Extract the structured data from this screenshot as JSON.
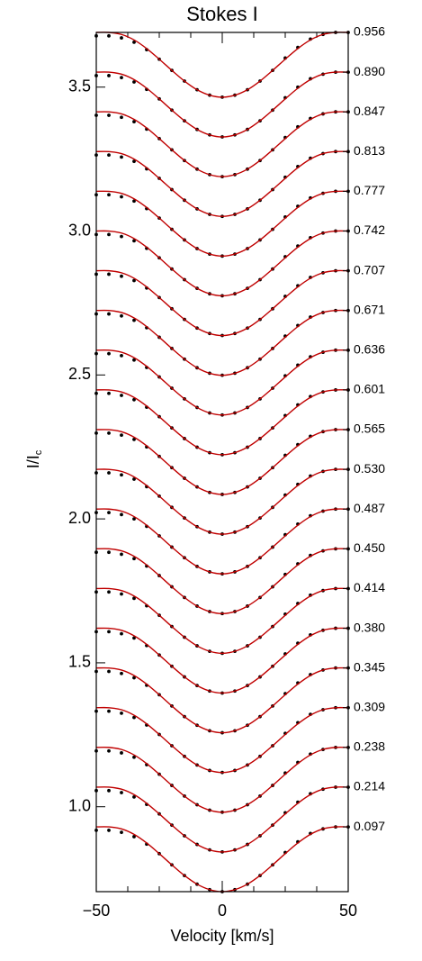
{
  "chart_data": {
    "type": "stacked-profiles",
    "title": "Stokes I",
    "xlabel": "Velocity [km/s]",
    "ylabel": "I/I",
    "ylabel_sub": "c",
    "xlim": [
      -50,
      50
    ],
    "ylim": [
      0.705,
      3.69
    ],
    "xticks": [
      {
        "value": -50,
        "label": "−50"
      },
      0,
      50
    ],
    "xminorticks": [
      -37.5,
      -25,
      -12.5,
      12.5,
      25,
      37.5
    ],
    "yticks": [
      {
        "value": 1.0,
        "label": "1.0"
      },
      1.5,
      {
        "value": 2.0,
        "label": "2.0"
      },
      2.5,
      {
        "value": 3.0,
        "label": "3.0"
      },
      3.5
    ],
    "model_color": "#c00000",
    "observed_color": "#000000",
    "x": [
      -50,
      -45,
      -40,
      -35,
      -30,
      -25,
      -20,
      -15,
      -10,
      -5,
      0,
      5,
      10,
      15,
      20,
      25,
      30,
      35,
      40,
      45,
      50
    ],
    "profiles": [
      {
        "label": "0.956",
        "model": [
          3.69,
          3.69,
          3.683,
          3.664,
          3.634,
          3.597,
          3.558,
          3.521,
          3.491,
          3.472,
          3.465,
          3.472,
          3.491,
          3.521,
          3.558,
          3.597,
          3.634,
          3.664,
          3.683,
          3.69,
          3.69
        ],
        "observed": [
          3.678,
          3.678,
          3.671,
          3.656,
          3.63,
          3.597,
          3.558,
          3.521,
          3.491,
          3.472,
          3.465,
          3.472,
          3.491,
          3.521,
          3.558,
          3.601,
          3.638,
          3.667,
          3.683,
          3.69,
          3.69
        ]
      },
      {
        "label": "0.890",
        "model": [
          3.552,
          3.552,
          3.545,
          3.526,
          3.496,
          3.459,
          3.42,
          3.383,
          3.353,
          3.334,
          3.327,
          3.334,
          3.353,
          3.383,
          3.42,
          3.459,
          3.496,
          3.526,
          3.545,
          3.552,
          3.552
        ],
        "observed": [
          3.54,
          3.54,
          3.533,
          3.518,
          3.492,
          3.459,
          3.42,
          3.383,
          3.353,
          3.334,
          3.327,
          3.334,
          3.353,
          3.383,
          3.42,
          3.463,
          3.5,
          3.529,
          3.545,
          3.552,
          3.552
        ]
      },
      {
        "label": "0.847",
        "model": [
          3.414,
          3.414,
          3.407,
          3.388,
          3.358,
          3.321,
          3.282,
          3.245,
          3.215,
          3.196,
          3.189,
          3.196,
          3.215,
          3.245,
          3.282,
          3.321,
          3.358,
          3.388,
          3.407,
          3.414,
          3.414
        ],
        "observed": [
          3.402,
          3.402,
          3.395,
          3.38,
          3.354,
          3.321,
          3.282,
          3.245,
          3.215,
          3.196,
          3.189,
          3.196,
          3.215,
          3.245,
          3.282,
          3.325,
          3.362,
          3.391,
          3.407,
          3.414,
          3.414
        ]
      },
      {
        "label": "0.813",
        "model": [
          3.276,
          3.276,
          3.269,
          3.25,
          3.22,
          3.183,
          3.144,
          3.107,
          3.077,
          3.058,
          3.051,
          3.058,
          3.077,
          3.107,
          3.144,
          3.183,
          3.22,
          3.25,
          3.269,
          3.276,
          3.276
        ],
        "observed": [
          3.264,
          3.264,
          3.257,
          3.242,
          3.216,
          3.183,
          3.144,
          3.107,
          3.077,
          3.058,
          3.051,
          3.058,
          3.077,
          3.107,
          3.144,
          3.187,
          3.224,
          3.253,
          3.269,
          3.276,
          3.276
        ]
      },
      {
        "label": "0.777",
        "model": [
          3.138,
          3.138,
          3.131,
          3.112,
          3.082,
          3.045,
          3.006,
          2.969,
          2.939,
          2.92,
          2.913,
          2.92,
          2.939,
          2.969,
          3.006,
          3.045,
          3.082,
          3.112,
          3.131,
          3.138,
          3.138
        ],
        "observed": [
          3.126,
          3.126,
          3.119,
          3.104,
          3.078,
          3.045,
          3.006,
          2.969,
          2.939,
          2.92,
          2.913,
          2.92,
          2.939,
          2.969,
          3.006,
          3.049,
          3.086,
          3.115,
          3.131,
          3.138,
          3.138
        ]
      },
      {
        "label": "0.742",
        "model": [
          3,
          3,
          2.993,
          2.974,
          2.944,
          2.907,
          2.868,
          2.831,
          2.801,
          2.782,
          2.775,
          2.782,
          2.801,
          2.831,
          2.868,
          2.907,
          2.944,
          2.974,
          2.993,
          3,
          3
        ],
        "observed": [
          2.988,
          2.988,
          2.981,
          2.966,
          2.94,
          2.907,
          2.868,
          2.831,
          2.801,
          2.782,
          2.775,
          2.782,
          2.801,
          2.831,
          2.868,
          2.911,
          2.948,
          2.977,
          2.993,
          3,
          3
        ]
      },
      {
        "label": "0.707",
        "model": [
          2.862,
          2.862,
          2.855,
          2.836,
          2.806,
          2.769,
          2.73,
          2.693,
          2.663,
          2.644,
          2.637,
          2.644,
          2.663,
          2.693,
          2.73,
          2.769,
          2.806,
          2.836,
          2.855,
          2.862,
          2.862
        ],
        "observed": [
          2.85,
          2.85,
          2.843,
          2.828,
          2.802,
          2.769,
          2.73,
          2.693,
          2.663,
          2.644,
          2.637,
          2.644,
          2.663,
          2.693,
          2.73,
          2.773,
          2.81,
          2.839,
          2.855,
          2.862,
          2.862
        ]
      },
      {
        "label": "0.671",
        "model": [
          2.724,
          2.724,
          2.717,
          2.698,
          2.668,
          2.631,
          2.592,
          2.555,
          2.525,
          2.506,
          2.499,
          2.506,
          2.525,
          2.555,
          2.592,
          2.631,
          2.668,
          2.698,
          2.717,
          2.724,
          2.724
        ],
        "observed": [
          2.712,
          2.712,
          2.705,
          2.69,
          2.664,
          2.631,
          2.592,
          2.555,
          2.525,
          2.506,
          2.499,
          2.506,
          2.525,
          2.555,
          2.592,
          2.635,
          2.672,
          2.701,
          2.717,
          2.724,
          2.724
        ]
      },
      {
        "label": "0.636",
        "model": [
          2.586,
          2.586,
          2.579,
          2.56,
          2.53,
          2.493,
          2.454,
          2.417,
          2.387,
          2.368,
          2.361,
          2.368,
          2.387,
          2.417,
          2.454,
          2.493,
          2.53,
          2.56,
          2.579,
          2.586,
          2.586
        ],
        "observed": [
          2.574,
          2.574,
          2.567,
          2.552,
          2.526,
          2.493,
          2.454,
          2.417,
          2.387,
          2.368,
          2.361,
          2.368,
          2.387,
          2.417,
          2.454,
          2.497,
          2.534,
          2.563,
          2.579,
          2.586,
          2.586
        ]
      },
      {
        "label": "0.601",
        "model": [
          2.448,
          2.448,
          2.441,
          2.422,
          2.392,
          2.355,
          2.316,
          2.279,
          2.249,
          2.23,
          2.223,
          2.23,
          2.249,
          2.279,
          2.316,
          2.355,
          2.392,
          2.422,
          2.441,
          2.448,
          2.448
        ],
        "observed": [
          2.436,
          2.436,
          2.429,
          2.414,
          2.388,
          2.355,
          2.316,
          2.279,
          2.249,
          2.23,
          2.223,
          2.23,
          2.249,
          2.279,
          2.316,
          2.359,
          2.396,
          2.425,
          2.441,
          2.448,
          2.448
        ]
      },
      {
        "label": "0.565",
        "model": [
          2.31,
          2.31,
          2.303,
          2.284,
          2.254,
          2.217,
          2.178,
          2.141,
          2.111,
          2.092,
          2.085,
          2.092,
          2.111,
          2.141,
          2.178,
          2.217,
          2.254,
          2.284,
          2.303,
          2.31,
          2.31
        ],
        "observed": [
          2.298,
          2.298,
          2.291,
          2.276,
          2.25,
          2.217,
          2.178,
          2.141,
          2.111,
          2.092,
          2.085,
          2.092,
          2.111,
          2.141,
          2.178,
          2.221,
          2.258,
          2.287,
          2.303,
          2.31,
          2.31
        ]
      },
      {
        "label": "0.530",
        "model": [
          2.172,
          2.172,
          2.165,
          2.146,
          2.116,
          2.079,
          2.04,
          2.003,
          1.973,
          1.954,
          1.947,
          1.954,
          1.973,
          2.003,
          2.04,
          2.079,
          2.116,
          2.146,
          2.165,
          2.172,
          2.172
        ],
        "observed": [
          2.16,
          2.16,
          2.153,
          2.138,
          2.112,
          2.079,
          2.04,
          2.003,
          1.973,
          1.954,
          1.947,
          1.954,
          1.973,
          2.003,
          2.04,
          2.083,
          2.12,
          2.149,
          2.165,
          2.172,
          2.172
        ]
      },
      {
        "label": "0.487",
        "model": [
          2.034,
          2.034,
          2.027,
          2.008,
          1.978,
          1.941,
          1.902,
          1.865,
          1.835,
          1.816,
          1.809,
          1.816,
          1.835,
          1.865,
          1.902,
          1.941,
          1.978,
          2.008,
          2.027,
          2.034,
          2.034
        ],
        "observed": [
          2.022,
          2.022,
          2.015,
          2,
          1.974,
          1.941,
          1.902,
          1.865,
          1.835,
          1.816,
          1.809,
          1.816,
          1.835,
          1.865,
          1.902,
          1.945,
          1.982,
          2.011,
          2.027,
          2.034,
          2.034
        ]
      },
      {
        "label": "0.450",
        "model": [
          1.896,
          1.896,
          1.889,
          1.87,
          1.84,
          1.803,
          1.764,
          1.727,
          1.697,
          1.678,
          1.671,
          1.678,
          1.697,
          1.727,
          1.764,
          1.803,
          1.84,
          1.87,
          1.889,
          1.896,
          1.896
        ],
        "observed": [
          1.884,
          1.884,
          1.877,
          1.862,
          1.836,
          1.803,
          1.764,
          1.727,
          1.697,
          1.678,
          1.671,
          1.678,
          1.697,
          1.727,
          1.764,
          1.807,
          1.844,
          1.873,
          1.889,
          1.896,
          1.896
        ]
      },
      {
        "label": "0.414",
        "model": [
          1.758,
          1.758,
          1.751,
          1.732,
          1.702,
          1.665,
          1.626,
          1.589,
          1.559,
          1.54,
          1.533,
          1.54,
          1.559,
          1.589,
          1.626,
          1.665,
          1.702,
          1.732,
          1.751,
          1.758,
          1.758
        ],
        "observed": [
          1.746,
          1.746,
          1.739,
          1.724,
          1.698,
          1.665,
          1.626,
          1.589,
          1.559,
          1.54,
          1.533,
          1.54,
          1.559,
          1.589,
          1.626,
          1.669,
          1.706,
          1.735,
          1.751,
          1.758,
          1.758
        ]
      },
      {
        "label": "0.380",
        "model": [
          1.62,
          1.62,
          1.613,
          1.594,
          1.564,
          1.527,
          1.488,
          1.451,
          1.421,
          1.402,
          1.395,
          1.402,
          1.421,
          1.451,
          1.488,
          1.527,
          1.564,
          1.594,
          1.613,
          1.62,
          1.62
        ],
        "observed": [
          1.608,
          1.608,
          1.601,
          1.586,
          1.56,
          1.527,
          1.488,
          1.451,
          1.421,
          1.402,
          1.395,
          1.402,
          1.421,
          1.451,
          1.488,
          1.531,
          1.568,
          1.597,
          1.613,
          1.62,
          1.62
        ]
      },
      {
        "label": "0.345",
        "model": [
          1.482,
          1.482,
          1.475,
          1.456,
          1.426,
          1.389,
          1.35,
          1.313,
          1.283,
          1.264,
          1.257,
          1.264,
          1.283,
          1.313,
          1.35,
          1.389,
          1.426,
          1.456,
          1.475,
          1.482,
          1.482
        ],
        "observed": [
          1.47,
          1.47,
          1.463,
          1.448,
          1.422,
          1.389,
          1.35,
          1.313,
          1.283,
          1.264,
          1.257,
          1.264,
          1.283,
          1.313,
          1.35,
          1.393,
          1.43,
          1.459,
          1.475,
          1.482,
          1.482
        ]
      },
      {
        "label": "0.309",
        "model": [
          1.344,
          1.344,
          1.337,
          1.318,
          1.288,
          1.251,
          1.212,
          1.175,
          1.145,
          1.126,
          1.119,
          1.126,
          1.145,
          1.175,
          1.212,
          1.251,
          1.288,
          1.318,
          1.337,
          1.344,
          1.344
        ],
        "observed": [
          1.332,
          1.332,
          1.325,
          1.31,
          1.284,
          1.251,
          1.212,
          1.175,
          1.145,
          1.126,
          1.119,
          1.126,
          1.145,
          1.175,
          1.212,
          1.255,
          1.292,
          1.321,
          1.337,
          1.344,
          1.344
        ]
      },
      {
        "label": "0.238",
        "model": [
          1.206,
          1.206,
          1.199,
          1.18,
          1.15,
          1.113,
          1.074,
          1.037,
          1.007,
          0.988,
          0.981,
          0.988,
          1.007,
          1.037,
          1.074,
          1.113,
          1.15,
          1.18,
          1.199,
          1.206,
          1.206
        ],
        "observed": [
          1.194,
          1.194,
          1.187,
          1.172,
          1.146,
          1.113,
          1.074,
          1.037,
          1.007,
          0.988,
          0.981,
          0.988,
          1.007,
          1.037,
          1.074,
          1.117,
          1.154,
          1.183,
          1.199,
          1.206,
          1.206
        ]
      },
      {
        "label": "0.214",
        "model": [
          1.068,
          1.068,
          1.061,
          1.042,
          1.012,
          0.975,
          0.936,
          0.899,
          0.869,
          0.85,
          0.843,
          0.85,
          0.869,
          0.899,
          0.936,
          0.975,
          1.012,
          1.042,
          1.061,
          1.068,
          1.068
        ],
        "observed": [
          1.056,
          1.056,
          1.049,
          1.034,
          1.008,
          0.975,
          0.936,
          0.899,
          0.869,
          0.85,
          0.843,
          0.85,
          0.869,
          0.899,
          0.936,
          0.979,
          1.016,
          1.045,
          1.061,
          1.068,
          1.068
        ]
      },
      {
        "label": "0.097",
        "model": [
          0.93,
          0.93,
          0.923,
          0.904,
          0.874,
          0.837,
          0.798,
          0.761,
          0.731,
          0.712,
          0.705,
          0.712,
          0.731,
          0.761,
          0.798,
          0.837,
          0.874,
          0.904,
          0.923,
          0.93,
          0.93
        ],
        "observed": [
          0.918,
          0.918,
          0.911,
          0.896,
          0.87,
          0.837,
          0.798,
          0.761,
          0.731,
          0.712,
          0.705,
          0.712,
          0.731,
          0.761,
          0.798,
          0.841,
          0.878,
          0.907,
          0.923,
          0.93,
          0.93
        ]
      }
    ]
  }
}
